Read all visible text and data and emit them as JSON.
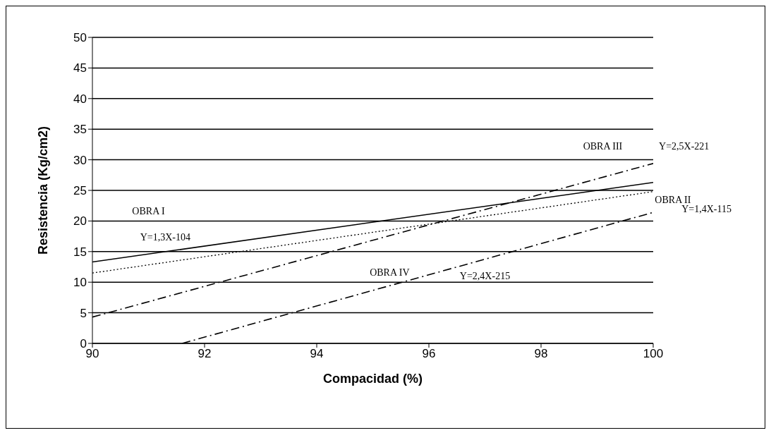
{
  "chart_data": {
    "type": "line",
    "xlabel": "Compacidad (%)",
    "ylabel": "Resistencia (Kg/cm2)",
    "xlim": [
      90,
      100
    ],
    "xticks": [
      90,
      92,
      94,
      96,
      98,
      100
    ],
    "ylim": [
      0,
      50
    ],
    "yticks": [
      0,
      5,
      10,
      15,
      20,
      25,
      30,
      35,
      40,
      45,
      50
    ],
    "grid": "y",
    "legend": false,
    "marker": "none",
    "series": [
      {
        "color": "#000000",
        "line_style": "solid",
        "x": [
          90,
          100
        ],
        "values": [
          13.3,
          26.3
        ]
      },
      {
        "color": "#000000",
        "line_style": "dotted",
        "x": [
          90,
          100
        ],
        "values": [
          11.5,
          24.8
        ]
      },
      {
        "color": "#000000",
        "line_style": "dashed",
        "x": [
          90,
          100
        ],
        "values": [
          4.3,
          29.4
        ]
      },
      {
        "color": "#000000",
        "line_style": "dashed",
        "x": [
          91.6,
          100
        ],
        "values": [
          0,
          21.4
        ]
      }
    ],
    "annotations": [
      "OBRA I",
      "Y=1,3X-104",
      "OBRA III",
      "Y=2,5X-221",
      "OBRA II",
      "Y=1,4X-115",
      "OBRA IV",
      "Y=2,4X-215"
    ]
  }
}
